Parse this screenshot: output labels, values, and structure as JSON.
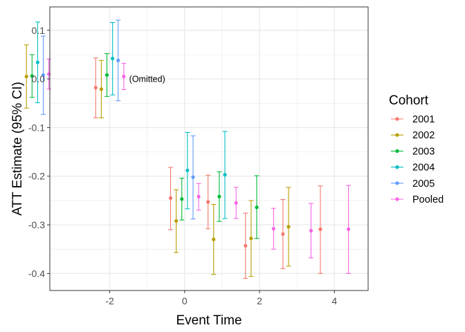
{
  "chart_data": {
    "type": "scatter",
    "subtype": "point-errorbar",
    "xlabel": "Event Time",
    "ylabel": "ATT Estimate (95% CI)",
    "xlim": [
      -3.6,
      4.9
    ],
    "ylim": [
      -0.435,
      0.148
    ],
    "x_ticks": [
      -2,
      0,
      2,
      4
    ],
    "x_tick_labels": [
      "-2",
      "0",
      "2",
      "4"
    ],
    "y_ticks": [
      0.1,
      0.0,
      -0.1,
      -0.2,
      -0.3,
      -0.4
    ],
    "y_tick_labels": [
      "0.1",
      "0.0",
      "-0.1",
      "-0.2",
      "-0.3",
      "-0.4"
    ],
    "grid": true,
    "legend_position": "right",
    "legend_title": "Cohort",
    "annotations": [
      {
        "text": "(Omitted)",
        "x": -1,
        "y": 0.0
      }
    ],
    "series": [
      {
        "name": "2001",
        "color": "#F8766D",
        "points": [
          {
            "x": -2,
            "y": -0.018,
            "lo": -0.08,
            "hi": 0.043
          },
          {
            "x": 0,
            "y": -0.245,
            "lo": -0.31,
            "hi": -0.182
          },
          {
            "x": 1,
            "y": -0.253,
            "lo": -0.308,
            "hi": -0.198
          },
          {
            "x": 2,
            "y": -0.343,
            "lo": -0.41,
            "hi": -0.276
          },
          {
            "x": 3,
            "y": -0.319,
            "lo": -0.39,
            "hi": -0.248
          },
          {
            "x": 4,
            "y": -0.309,
            "lo": -0.4,
            "hi": -0.22
          }
        ]
      },
      {
        "name": "2002",
        "color": "#B79F00",
        "points": [
          {
            "x": -4,
            "y": 0.005,
            "lo": -0.06,
            "hi": 0.07
          },
          {
            "x": -2,
            "y": -0.021,
            "lo": -0.08,
            "hi": 0.038
          },
          {
            "x": 0,
            "y": -0.292,
            "lo": -0.357,
            "hi": -0.228
          },
          {
            "x": 1,
            "y": -0.33,
            "lo": -0.402,
            "hi": -0.258
          },
          {
            "x": 2,
            "y": -0.328,
            "lo": -0.406,
            "hi": -0.25
          },
          {
            "x": 3,
            "y": -0.304,
            "lo": -0.385,
            "hi": -0.223
          }
        ]
      },
      {
        "name": "2003",
        "color": "#00BA38",
        "points": [
          {
            "x": -4,
            "y": 0.006,
            "lo": -0.038,
            "hi": 0.05
          },
          {
            "x": -2,
            "y": 0.008,
            "lo": -0.036,
            "hi": 0.052
          },
          {
            "x": 0,
            "y": -0.247,
            "lo": -0.29,
            "hi": -0.204
          },
          {
            "x": 1,
            "y": -0.242,
            "lo": -0.293,
            "hi": -0.191
          },
          {
            "x": 2,
            "y": -0.264,
            "lo": -0.328,
            "hi": -0.199
          }
        ]
      },
      {
        "name": "2004",
        "color": "#00BFC4",
        "points": [
          {
            "x": -4,
            "y": 0.034,
            "lo": -0.049,
            "hi": 0.117
          },
          {
            "x": -2,
            "y": 0.042,
            "lo": -0.033,
            "hi": 0.116
          },
          {
            "x": 0,
            "y": -0.188,
            "lo": -0.267,
            "hi": -0.11
          },
          {
            "x": 1,
            "y": -0.197,
            "lo": -0.287,
            "hi": -0.108
          }
        ]
      },
      {
        "name": "2005",
        "color": "#619CFF",
        "points": [
          {
            "x": -4,
            "y": 0.008,
            "lo": -0.073,
            "hi": 0.088
          },
          {
            "x": -2,
            "y": 0.038,
            "lo": -0.045,
            "hi": 0.121
          },
          {
            "x": 0,
            "y": -0.202,
            "lo": -0.288,
            "hi": -0.117
          }
        ]
      },
      {
        "name": "Pooled",
        "color": "#F564E3",
        "points": [
          {
            "x": -4,
            "y": 0.01,
            "lo": -0.021,
            "hi": 0.041
          },
          {
            "x": -2,
            "y": 0.005,
            "lo": -0.022,
            "hi": 0.032
          },
          {
            "x": 0,
            "y": -0.242,
            "lo": -0.27,
            "hi": -0.215
          },
          {
            "x": 1,
            "y": -0.255,
            "lo": -0.287,
            "hi": -0.223
          },
          {
            "x": 2,
            "y": -0.308,
            "lo": -0.35,
            "hi": -0.266
          },
          {
            "x": 3,
            "y": -0.312,
            "lo": -0.368,
            "hi": -0.256
          },
          {
            "x": 4,
            "y": -0.309,
            "lo": -0.4,
            "hi": -0.219
          }
        ]
      }
    ]
  }
}
